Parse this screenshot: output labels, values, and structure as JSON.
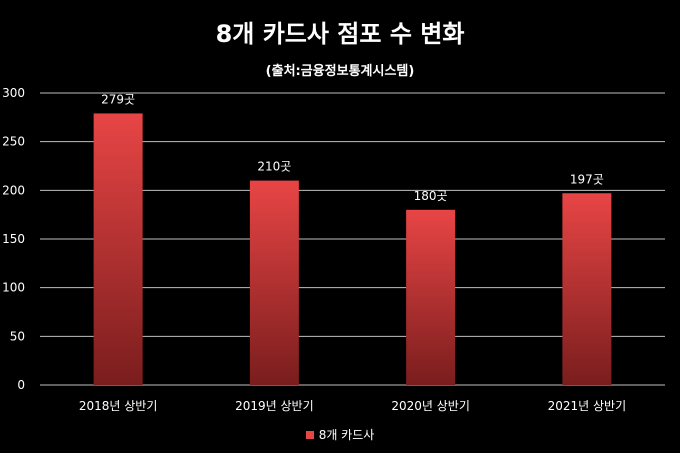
{
  "chart_data": {
    "type": "bar",
    "title": "8개 카드사 점포 수 변화",
    "subtitle": "(출처:금융정보통계시스템)",
    "categories": [
      "2018년 상반기",
      "2019년 상반기",
      "2020년 상반기",
      "2021년 상반기"
    ],
    "series": [
      {
        "name": "8개 카드사",
        "values": [
          279,
          210,
          180,
          197
        ]
      }
    ],
    "data_labels": [
      "279곳",
      "210곳",
      "180곳",
      "197곳"
    ],
    "y_ticks": [
      "0",
      "50",
      "100",
      "150",
      "200",
      "250",
      "300"
    ],
    "ylim": [
      0,
      300
    ],
    "grid": true,
    "legend_position": "bottom",
    "colors": {
      "bar_top": "#e84545",
      "bar_bottom": "#7a1d1d",
      "background": "#000000",
      "grid": "#bfbfbf"
    }
  }
}
